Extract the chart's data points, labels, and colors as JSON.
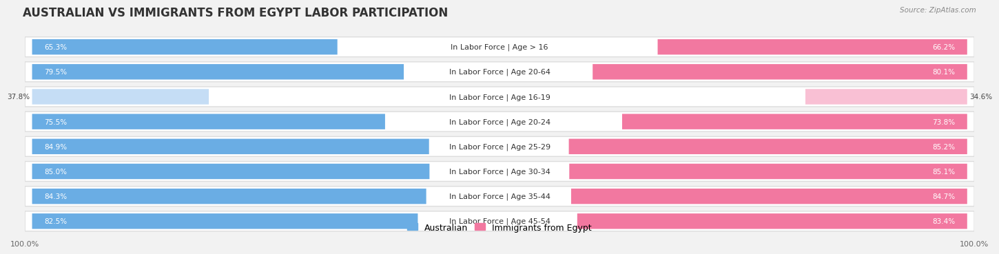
{
  "title": "AUSTRALIAN VS IMMIGRANTS FROM EGYPT LABOR PARTICIPATION",
  "source": "Source: ZipAtlas.com",
  "categories": [
    "In Labor Force | Age > 16",
    "In Labor Force | Age 20-64",
    "In Labor Force | Age 16-19",
    "In Labor Force | Age 20-24",
    "In Labor Force | Age 25-29",
    "In Labor Force | Age 30-34",
    "In Labor Force | Age 35-44",
    "In Labor Force | Age 45-54"
  ],
  "australian_values": [
    65.3,
    79.5,
    37.8,
    75.5,
    84.9,
    85.0,
    84.3,
    82.5
  ],
  "egypt_values": [
    66.2,
    80.1,
    34.6,
    73.8,
    85.2,
    85.1,
    84.7,
    83.4
  ],
  "australian_color": "#6aade4",
  "australian_color_light": "#c5ddf5",
  "egypt_color": "#f278a0",
  "egypt_color_light": "#f9c0d4",
  "bar_height": 0.62,
  "max_value": 100.0,
  "background_color": "#f2f2f2",
  "row_bg_color": "#ffffff",
  "row_border_color": "#dddddd",
  "title_fontsize": 12,
  "label_fontsize": 8,
  "value_fontsize": 7.5,
  "legend_fontsize": 9,
  "axis_fontsize": 8
}
